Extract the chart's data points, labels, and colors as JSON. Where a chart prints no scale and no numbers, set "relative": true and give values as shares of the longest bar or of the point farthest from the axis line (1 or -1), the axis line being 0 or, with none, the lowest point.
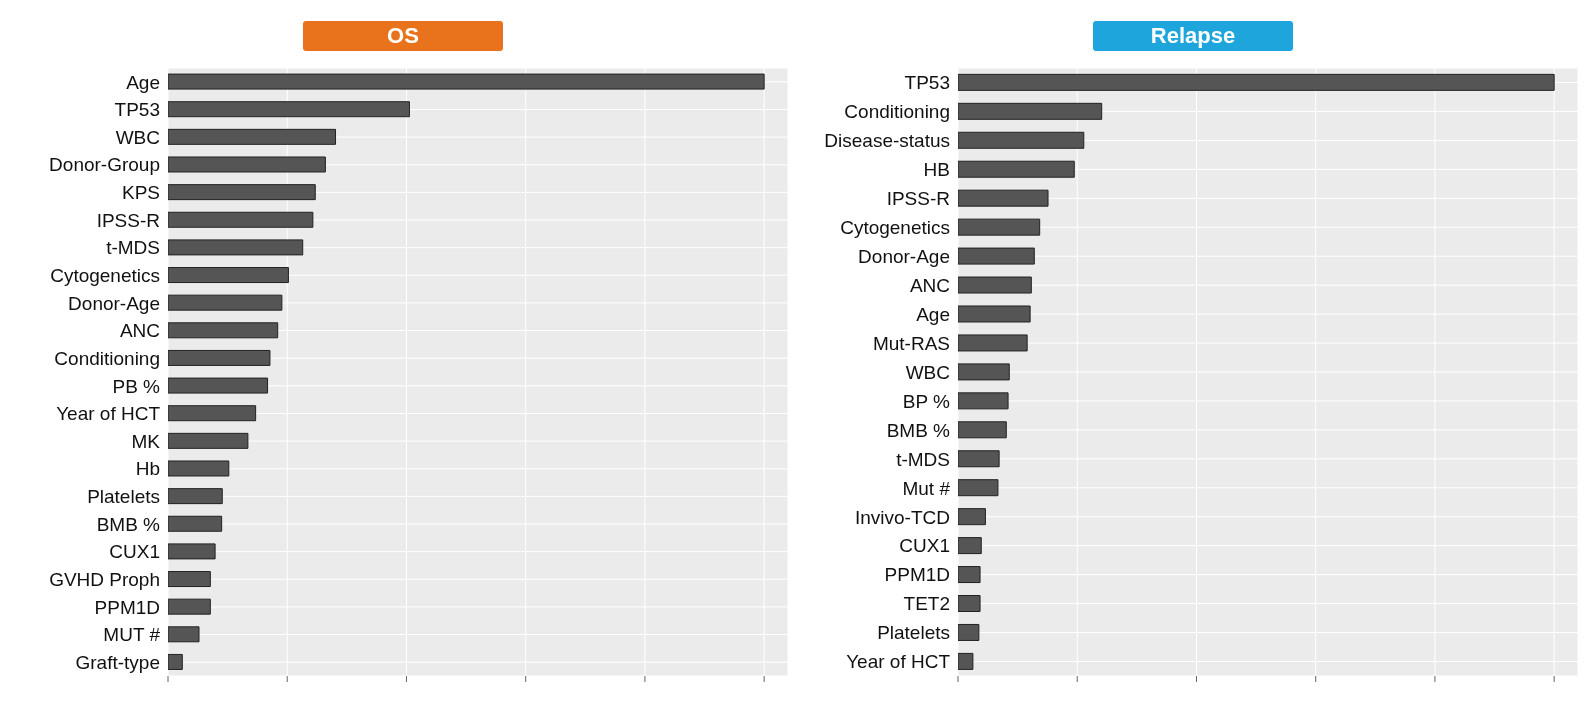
{
  "chart_data": [
    {
      "type": "bar",
      "title": "OS",
      "orientation": "horizontal",
      "relative": true,
      "grid": true,
      "tick_labels": "y",
      "color": "#555555",
      "categories": [
        "Age",
        "TP53",
        "WBC",
        "Donor-Group",
        "KPS",
        "IPSS-R",
        "t-MDS",
        "Cytogenetics",
        "Donor-Age",
        "ANC",
        "Conditioning",
        "PB %",
        "Year of HCT",
        "MK",
        "Hb",
        "Platelets",
        "BMB %",
        "CUX1",
        "GVHD Proph",
        "PPM1D",
        "MUT #",
        "Graft-type"
      ],
      "values": [
        1,
        0.405,
        0.281,
        0.264,
        0.247,
        0.243,
        0.226,
        0.202,
        0.191,
        0.184,
        0.171,
        0.167,
        0.147,
        0.134,
        0.102,
        0.091,
        0.09,
        0.079,
        0.071,
        0.071,
        0.052,
        0.024
      ]
    },
    {
      "type": "bar",
      "title": "Relapse",
      "orientation": "horizontal",
      "relative": true,
      "grid": true,
      "tick_labels": "y",
      "color": "#555555",
      "categories": [
        "TP53",
        "Conditioning",
        "Disease-status",
        "HB",
        "IPSS-R",
        "Cytogenetics",
        "Donor-Age",
        "ANC",
        "Age",
        "Mut-RAS",
        "WBC",
        "BP %",
        "BMB %",
        "t-MDS",
        "Mut #",
        "Invivo-TCD",
        "CUX1",
        "PPM1D",
        "TET2",
        "Platelets",
        "Year of HCT"
      ],
      "values": [
        1,
        0.241,
        0.211,
        0.195,
        0.151,
        0.137,
        0.128,
        0.123,
        0.121,
        0.116,
        0.086,
        0.084,
        0.081,
        0.069,
        0.067,
        0.046,
        0.039,
        0.037,
        0.037,
        0.035,
        0.025
      ]
    }
  ]
}
